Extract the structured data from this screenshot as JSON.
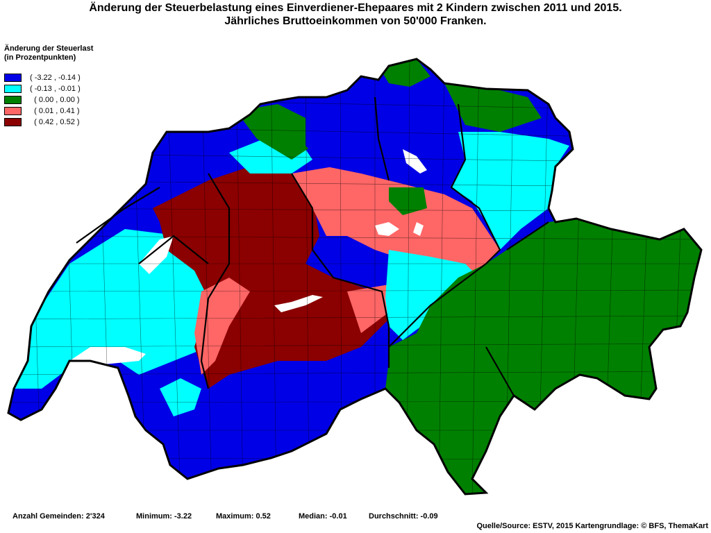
{
  "title": {
    "line1": "Änderung der Steuerbelastung eines Einverdiener-Ehepaares mit 2 Kindern zwischen 2011 und 2015.",
    "line2": "Jährliches Bruttoeinkommen von 50'000 Franken."
  },
  "legend": {
    "heading1": "Änderung der Steuerlast",
    "heading2": "(in Prozentpunkten)",
    "classes": [
      {
        "label": "( -3.22 , -0.14 )",
        "color": "#0000e6"
      },
      {
        "label": "( -0.13 , -0.01 )",
        "color": "#00ffff"
      },
      {
        "label": "  ( 0.00 , 0.00 )",
        "color": "#008000"
      },
      {
        "label": "  ( 0.01 , 0.41 )",
        "color": "#ff6666"
      },
      {
        "label": "  ( 0.42 , 0.52 )",
        "color": "#8b0000"
      }
    ]
  },
  "stats": {
    "count": "Anzahl Gemeinden: 2'324",
    "minimum": "Minimum: -3.22",
    "maximum": "Maximum: 0.52",
    "median": "Median: -0.01",
    "mean": "Durchschnitt: -0.09"
  },
  "source": "Quelle/Source: ESTV, 2015 Kartengrundlage: © BFS, ThemaKart"
}
